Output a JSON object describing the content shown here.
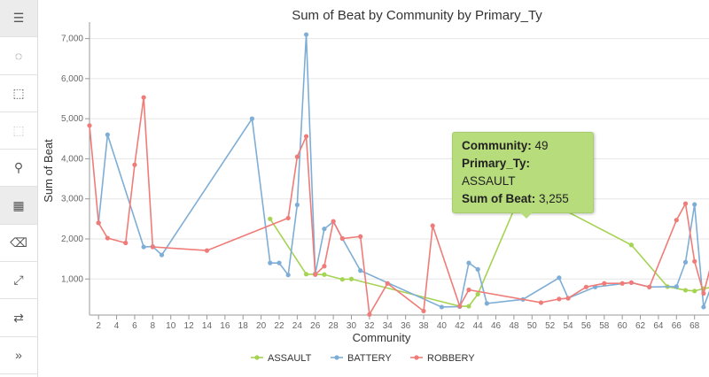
{
  "toolbar": {
    "items": [
      {
        "icon": "list-icon",
        "glyph": "☰",
        "active": true
      },
      {
        "icon": "lasso-icon",
        "glyph": "◌"
      },
      {
        "icon": "box-select-icon",
        "glyph": "⬚"
      },
      {
        "icon": "clear-select-icon",
        "glyph": "⬚",
        "disabled": true
      },
      {
        "icon": "zoom-icon",
        "glyph": "⚲"
      },
      {
        "icon": "zoom-select-icon",
        "glyph": "▦",
        "active": true
      },
      {
        "icon": "eraser-icon",
        "glyph": "⌫"
      },
      {
        "icon": "fullscreen-icon",
        "glyph": "⤢"
      },
      {
        "icon": "swap-icon",
        "glyph": "⇄"
      },
      {
        "icon": "expand-icon",
        "glyph": "»"
      }
    ]
  },
  "tooltip": {
    "community_label": "Community:",
    "community_value": "49",
    "type_label": "Primary_Ty:",
    "type_value": "ASSAULT",
    "sum_label": "Sum of Beat:",
    "sum_value": "3,255"
  },
  "chart_data": {
    "type": "line",
    "title": "Sum of Beat by Community by Primary_Ty",
    "xlabel": "Community",
    "ylabel": "Sum of Beat",
    "xlim": [
      1,
      69.6
    ],
    "ylim": [
      100,
      7300
    ],
    "xticks": [
      2,
      4,
      6,
      8,
      10,
      12,
      14,
      16,
      18,
      20,
      22,
      24,
      26,
      28,
      30,
      32,
      34,
      36,
      38,
      40,
      42,
      44,
      46,
      48,
      50,
      52,
      54,
      56,
      58,
      60,
      62,
      64,
      66,
      68
    ],
    "yticks": [
      1000,
      2000,
      3000,
      4000,
      5000,
      6000,
      7000
    ],
    "ytick_labels": [
      "1,000",
      "2,000",
      "3,000",
      "4,000",
      "5,000",
      "6,000",
      "7,000"
    ],
    "grid": true,
    "legend": "bottom",
    "series": [
      {
        "name": "ASSAULT",
        "color": "#a5d352",
        "points": [
          [
            21,
            2500
          ],
          [
            25,
            1120
          ],
          [
            27,
            1110
          ],
          [
            29,
            990
          ],
          [
            30,
            1000
          ],
          [
            42,
            320
          ],
          [
            43,
            320
          ],
          [
            44,
            620
          ],
          [
            49,
            3255
          ],
          [
            61,
            1850
          ],
          [
            65,
            810
          ],
          [
            67,
            720
          ],
          [
            68,
            700
          ],
          [
            69,
            760
          ],
          [
            70,
            800
          ]
        ]
      },
      {
        "name": "BATTERY",
        "color": "#7eaed6",
        "points": [
          [
            2,
            2400
          ],
          [
            3,
            4600
          ],
          [
            7,
            1800
          ],
          [
            8,
            1810
          ],
          [
            9,
            1600
          ],
          [
            19,
            5000
          ],
          [
            21,
            1400
          ],
          [
            22,
            1400
          ],
          [
            23,
            1100
          ],
          [
            24,
            2850
          ],
          [
            25,
            7100
          ],
          [
            26,
            1130
          ],
          [
            27,
            2250
          ],
          [
            28,
            2430
          ],
          [
            29,
            2010
          ],
          [
            31,
            1210
          ],
          [
            40,
            300
          ],
          [
            42,
            310
          ],
          [
            43,
            1400
          ],
          [
            44,
            1240
          ],
          [
            45,
            390
          ],
          [
            49,
            490
          ],
          [
            53,
            1030
          ],
          [
            54,
            520
          ],
          [
            57,
            800
          ],
          [
            61,
            910
          ],
          [
            63,
            800
          ],
          [
            66,
            810
          ],
          [
            67,
            1420
          ],
          [
            68,
            2860
          ],
          [
            69,
            300
          ],
          [
            70,
            900
          ]
        ]
      },
      {
        "name": "ROBBERY",
        "color": "#ef7c78",
        "points": [
          [
            1,
            4830
          ],
          [
            2,
            2400
          ],
          [
            3,
            2020
          ],
          [
            5,
            1900
          ],
          [
            6,
            3850
          ],
          [
            7,
            5530
          ],
          [
            8,
            1800
          ],
          [
            14,
            1710
          ],
          [
            23,
            2520
          ],
          [
            24,
            4050
          ],
          [
            25,
            4560
          ],
          [
            26,
            1110
          ],
          [
            27,
            1320
          ],
          [
            28,
            2440
          ],
          [
            29,
            2010
          ],
          [
            31,
            2060
          ],
          [
            32,
            115
          ],
          [
            34,
            890
          ],
          [
            38,
            200
          ],
          [
            39,
            2330
          ],
          [
            42,
            320
          ],
          [
            43,
            730
          ],
          [
            51,
            410
          ],
          [
            53,
            500
          ],
          [
            54,
            520
          ],
          [
            56,
            800
          ],
          [
            58,
            890
          ],
          [
            60,
            890
          ],
          [
            61,
            910
          ],
          [
            63,
            800
          ],
          [
            66,
            2470
          ],
          [
            67,
            2880
          ],
          [
            68,
            1440
          ],
          [
            69,
            640
          ],
          [
            70,
            1500
          ]
        ]
      }
    ]
  }
}
